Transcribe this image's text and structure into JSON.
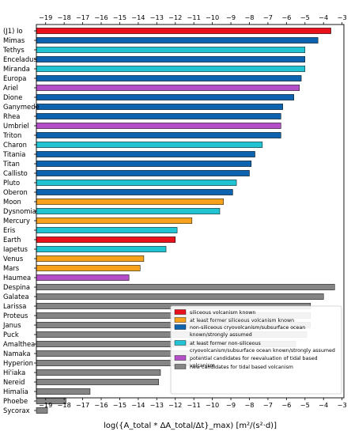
{
  "chart_data": {
    "type": "bar",
    "orientation": "horizontal",
    "xlabel": "log({A_total * ΔA_total/Δt}_max)  [m²/(s²·d)]",
    "xlim": [
      -19.5,
      -2.9
    ],
    "xticks": [
      "-19",
      "-18",
      "-17",
      "-16",
      "-15",
      "-14",
      "-13",
      "-12",
      "-11",
      "-10",
      "-9",
      "-8",
      "-7",
      "-6",
      "-5",
      "-4",
      "-3"
    ],
    "xticks_on_top": true,
    "colors": {
      "siliceous": "#e8111c",
      "former_siliceous": "#f5a21d",
      "cryo_known": "#0e63ae",
      "cryo_former": "#22c4d4",
      "reevaluation": "#b44fc8",
      "new": "#858585"
    },
    "categories": [
      "(J1) Io",
      "Mimas",
      "Tethys",
      "Enceladus",
      "Miranda",
      "Europa",
      "Ariel",
      "Dione",
      "Ganymede",
      "Rhea",
      "Umbriel",
      "Triton",
      "Charon",
      "Titania",
      "Titan",
      "Callisto",
      "Pluto",
      "Oberon",
      "Moon",
      "Dysnomia",
      "Mercury",
      "Eris",
      "Earth",
      "Iapetus",
      "Venus",
      "Mars",
      "Haumea",
      "Despina",
      "Galatea",
      "Larissa",
      "Proteus",
      "Janus",
      "Puck",
      "Amalthea",
      "Namaka",
      "Hyperion",
      "Hi'iaka",
      "Nereid",
      "Himalia",
      "Phoebe",
      "Sycorax"
    ],
    "values": [
      -3.6,
      -4.3,
      -5.0,
      -5.0,
      -5.0,
      -5.2,
      -5.3,
      -5.6,
      -6.2,
      -6.3,
      -6.3,
      -6.3,
      -7.3,
      -7.7,
      -7.9,
      -8.0,
      -8.7,
      -8.9,
      -9.4,
      -9.6,
      -11.1,
      -11.9,
      -12.0,
      -12.5,
      -13.7,
      -13.9,
      -14.5,
      -3.4,
      -4.0,
      -4.7,
      -4.7,
      -4.7,
      -4.9,
      -5.5,
      -10.5,
      -11.2,
      -12.8,
      -12.9,
      -16.6,
      -17.9,
      -18.9
    ],
    "groups": [
      "siliceous",
      "cryo_known",
      "cryo_former",
      "cryo_known",
      "cryo_former",
      "cryo_known",
      "reevaluation",
      "cryo_known",
      "cryo_known",
      "cryo_known",
      "reevaluation",
      "cryo_known",
      "cryo_former",
      "cryo_known",
      "cryo_known",
      "cryo_known",
      "cryo_former",
      "cryo_known",
      "former_siliceous",
      "cryo_former",
      "former_siliceous",
      "cryo_former",
      "siliceous",
      "cryo_former",
      "former_siliceous",
      "former_siliceous",
      "reevaluation",
      "new",
      "new",
      "new",
      "new",
      "new",
      "new",
      "new",
      "new",
      "new",
      "new",
      "new",
      "new",
      "new",
      "new"
    ],
    "legend_position": "bottom-right",
    "legend": [
      {
        "key": "siliceous",
        "label": "siliceous volcanism known"
      },
      {
        "key": "former_siliceous",
        "label": "at least former siliceous volcanism known"
      },
      {
        "key": "cryo_known",
        "label": "non-siliceous cryovolcanism/subsurface ocean known/strongly assumed"
      },
      {
        "key": "cryo_former",
        "label": "at least former non-siliceous cryovolcanism/subsurface ocean known/strongly assumed"
      },
      {
        "key": "reevaluation",
        "label": "potential candidates for reevaluation of tidal based volcanism"
      },
      {
        "key": "new",
        "label": "new candidates for tidal based volcanism"
      }
    ]
  }
}
